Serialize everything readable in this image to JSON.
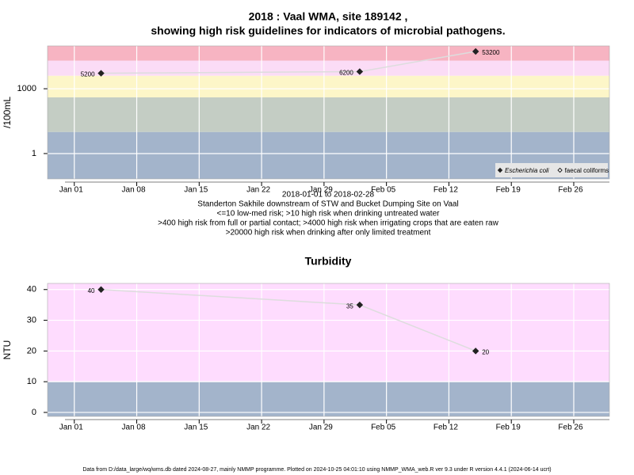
{
  "chart_data": [
    {
      "type": "line",
      "title": [
        "2018 : Vaal WMA, site 189142 ,",
        "showing high risk guidelines for indicators of microbial pathogens."
      ],
      "xlabel": "2018-01-01 to 2018-02-28",
      "notes": [
        "Standerton Sakhile downstream of STW and Bucket Dumping Site on Vaal",
        "<=10 low-med risk; >10 high risk when drinking untreated water",
        ">400 high risk from full or partial contact; >4000 high risk when irrigating crops that are eaten raw",
        ">20000 high risk when drinking after only limited treatment"
      ],
      "ylabel": "/100mL",
      "log_y": true,
      "x": [
        "2018-01-04",
        "2018-02-02",
        "2018-02-15"
      ],
      "series": [
        {
          "name": "Escherichia coli",
          "color": "#222222",
          "marker": "filled-diamond",
          "values": [
            5200,
            6200,
            53200
          ]
        },
        {
          "name": "faecal coliforms",
          "color": "#222222",
          "marker": "open-diamond",
          "values": [
            null,
            null,
            null
          ]
        }
      ],
      "line_color": "#dddddd",
      "band_edges": [
        10,
        400,
        4000,
        20000
      ],
      "band_colors": [
        "#a3b4cb",
        "#c4cdc4",
        "#fdf6c8",
        "#fbdcf6",
        "#f7b4c2"
      ],
      "xlim": [
        "2017-12-29",
        "2018-03-02"
      ],
      "xticks": [
        {
          "value": "2018-01-01",
          "label": "Jan 01"
        },
        {
          "value": "2018-01-08",
          "label": "Jan 08"
        },
        {
          "value": "2018-01-15",
          "label": "Jan 15"
        },
        {
          "value": "2018-01-22",
          "label": "Jan 22"
        },
        {
          "value": "2018-01-29",
          "label": "Jan 29"
        },
        {
          "value": "2018-02-05",
          "label": "Feb 05"
        },
        {
          "value": "2018-02-12",
          "label": "Feb 12"
        },
        {
          "value": "2018-02-19",
          "label": "Feb 19"
        },
        {
          "value": "2018-02-26",
          "label": "Feb 26"
        }
      ],
      "ylim": [
        0.067,
        96000
      ],
      "yticks": [
        1,
        1000
      ],
      "grid": true,
      "legend": "bottom-right"
    },
    {
      "type": "line",
      "title": [
        "Turbidity"
      ],
      "ylabel": "NTU",
      "log_y": false,
      "x": [
        "2018-01-04",
        "2018-02-02",
        "2018-02-15"
      ],
      "series": [
        {
          "name": "Turbidity",
          "color": "#222222",
          "marker": "filled-diamond",
          "values": [
            40,
            35,
            20
          ]
        }
      ],
      "line_color": "#dddddd",
      "band_edges": [
        10
      ],
      "band_colors": [
        "#a3b4cb",
        "#fedcfe"
      ],
      "xlim": [
        "2017-12-29",
        "2018-03-02"
      ],
      "xticks": [
        {
          "value": "2018-01-01",
          "label": "Jan 01"
        },
        {
          "value": "2018-01-08",
          "label": "Jan 08"
        },
        {
          "value": "2018-01-15",
          "label": "Jan 15"
        },
        {
          "value": "2018-01-22",
          "label": "Jan 22"
        },
        {
          "value": "2018-01-29",
          "label": "Jan 29"
        },
        {
          "value": "2018-02-05",
          "label": "Feb 05"
        },
        {
          "value": "2018-02-12",
          "label": "Feb 12"
        },
        {
          "value": "2018-02-19",
          "label": "Feb 19"
        },
        {
          "value": "2018-02-26",
          "label": "Feb 26"
        }
      ],
      "ylim": [
        -1.3,
        42
      ],
      "yticks": [
        0,
        10,
        20,
        30,
        40
      ],
      "grid": true,
      "legend": null
    }
  ],
  "footer": "Data from D:/data_large/wq/wms.db dated 2024-08-27, mainly NMMP programme. Plotted on 2024-10-25 04:01:10 using NMMP_WMA_web.R ver 9.3 under R version 4.4.1 (2024-06-14 ucrt)"
}
